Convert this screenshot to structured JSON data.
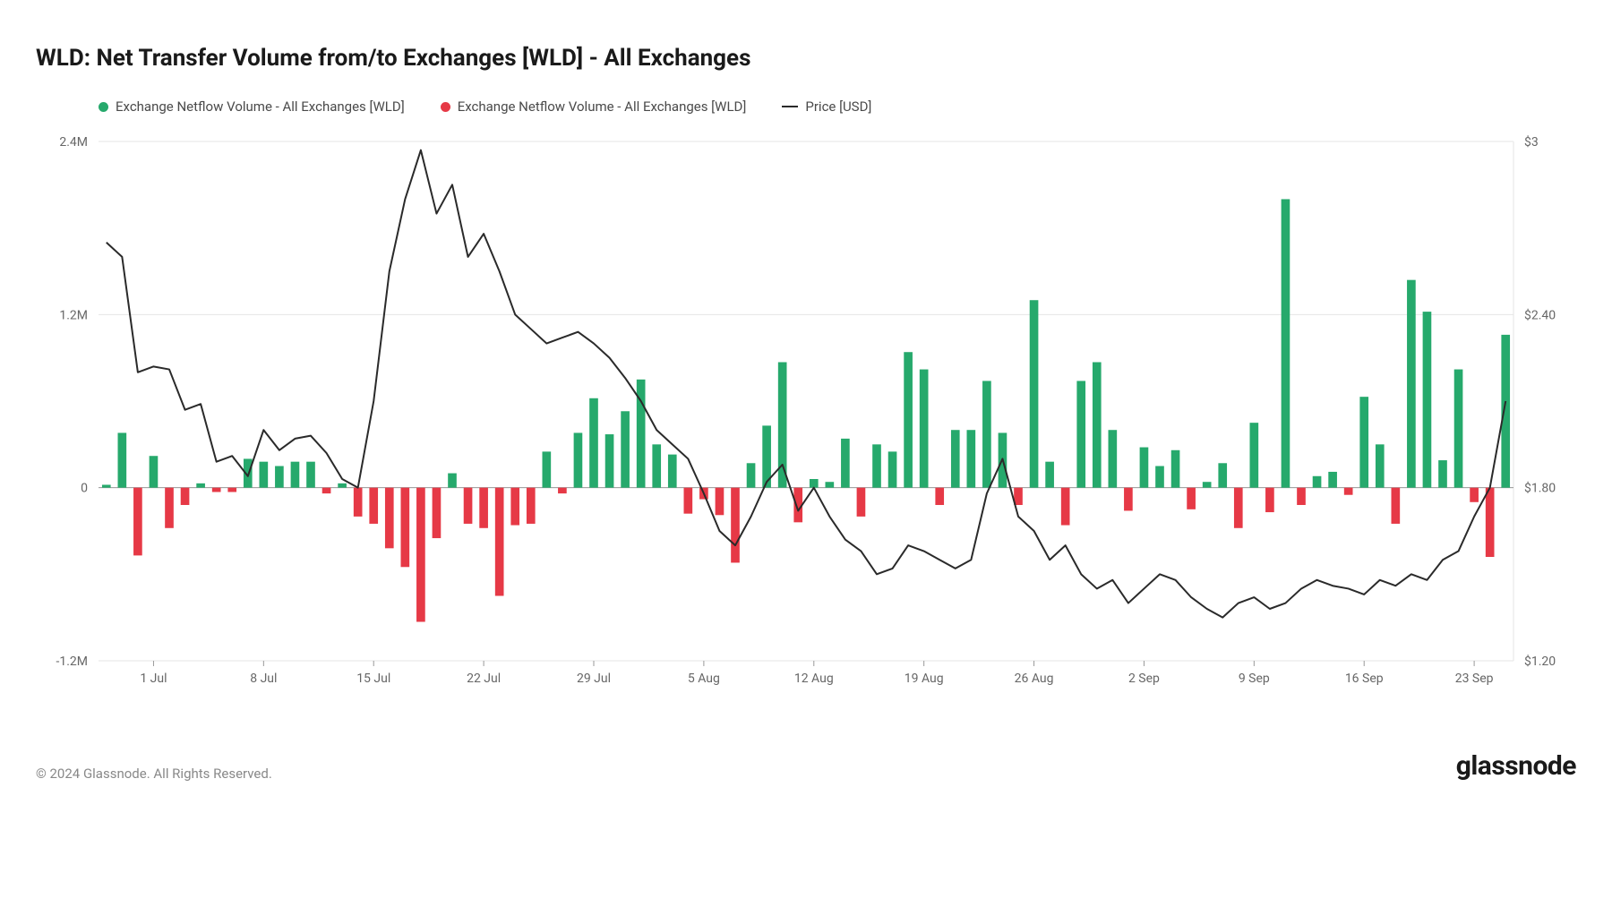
{
  "title": "WLD: Net Transfer Volume from/to Exchanges [WLD] - All Exchanges",
  "legend": {
    "series1": {
      "label": "Exchange Netflow Volume - All Exchanges [WLD]",
      "color": "#26a96c"
    },
    "series2": {
      "label": "Exchange Netflow Volume - All Exchanges [WLD]",
      "color": "#e63946"
    },
    "series3": {
      "label": "Price [USD]",
      "color": "#2a2a2a"
    }
  },
  "chart": {
    "type": "bar+line",
    "background_color": "#ffffff",
    "grid_color": "#e5e5e5",
    "axis_label_fontsize": 14,
    "axis_label_color": "#666666",
    "left_axis": {
      "min": -1200000,
      "max": 2400000,
      "ticks": [
        {
          "v": -1200000,
          "label": "-1.2M"
        },
        {
          "v": 0,
          "label": "0"
        },
        {
          "v": 1200000,
          "label": "1.2M"
        },
        {
          "v": 2400000,
          "label": "2.4M"
        }
      ]
    },
    "right_axis": {
      "min": 1.2,
      "max": 3.0,
      "ticks": [
        {
          "v": 1.2,
          "label": "$1.20"
        },
        {
          "v": 1.8,
          "label": "$1.80"
        },
        {
          "v": 2.4,
          "label": "$2.40"
        },
        {
          "v": 3.0,
          "label": "$3"
        }
      ]
    },
    "x_axis": {
      "labels": [
        "1 Jul",
        "8 Jul",
        "15 Jul",
        "22 Jul",
        "29 Jul",
        "5 Aug",
        "12 Aug",
        "19 Aug",
        "26 Aug",
        "2 Sep",
        "9 Sep",
        "16 Sep",
        "23 Sep"
      ],
      "tick_indices": [
        3,
        10,
        17,
        24,
        31,
        38,
        45,
        52,
        59,
        66,
        73,
        80,
        87
      ]
    },
    "bar_width_ratio": 0.55,
    "positive_color": "#26a96c",
    "negative_color": "#e63946",
    "line_color": "#2a2a2a",
    "line_width": 2,
    "bars": [
      20000,
      380000,
      -470000,
      220000,
      -280000,
      -120000,
      30000,
      -30000,
      -30000,
      200000,
      180000,
      150000,
      180000,
      180000,
      -40000,
      30000,
      -200000,
      -250000,
      -420000,
      -550000,
      -930000,
      -350000,
      100000,
      -250000,
      -280000,
      -750000,
      -260000,
      -250000,
      250000,
      -40000,
      380000,
      620000,
      370000,
      530000,
      750000,
      300000,
      230000,
      -180000,
      -80000,
      -190000,
      -520000,
      170000,
      430000,
      870000,
      -240000,
      60000,
      40000,
      340000,
      -200000,
      300000,
      250000,
      940000,
      820000,
      -120000,
      400000,
      400000,
      740000,
      380000,
      -120000,
      1300000,
      180000,
      -260000,
      740000,
      870000,
      400000,
      -160000,
      280000,
      150000,
      260000,
      -150000,
      40000,
      170000,
      -280000,
      450000,
      -170000,
      2000000,
      -120000,
      80000,
      110000,
      -50000,
      630000,
      300000,
      -250000,
      1440000,
      1220000,
      190000,
      820000,
      -100000,
      -480000,
      1060000
    ],
    "price": [
      2.65,
      2.6,
      2.2,
      2.22,
      2.21,
      2.07,
      2.09,
      1.89,
      1.91,
      1.84,
      2.0,
      1.93,
      1.97,
      1.98,
      1.92,
      1.83,
      1.8,
      2.1,
      2.55,
      2.8,
      2.97,
      2.75,
      2.85,
      2.6,
      2.68,
      2.55,
      2.4,
      2.35,
      2.3,
      2.32,
      2.34,
      2.3,
      2.25,
      2.18,
      2.1,
      2.0,
      1.95,
      1.9,
      1.78,
      1.65,
      1.6,
      1.7,
      1.82,
      1.88,
      1.72,
      1.8,
      1.7,
      1.62,
      1.58,
      1.5,
      1.52,
      1.6,
      1.58,
      1.55,
      1.52,
      1.55,
      1.78,
      1.9,
      1.7,
      1.65,
      1.55,
      1.6,
      1.5,
      1.45,
      1.48,
      1.4,
      1.45,
      1.5,
      1.48,
      1.42,
      1.38,
      1.35,
      1.4,
      1.42,
      1.38,
      1.4,
      1.45,
      1.48,
      1.46,
      1.45,
      1.43,
      1.48,
      1.46,
      1.5,
      1.48,
      1.55,
      1.58,
      1.7,
      1.8,
      2.1
    ]
  },
  "footer": {
    "copyright": "© 2024 Glassnode. All Rights Reserved.",
    "brand": "glassnode"
  }
}
